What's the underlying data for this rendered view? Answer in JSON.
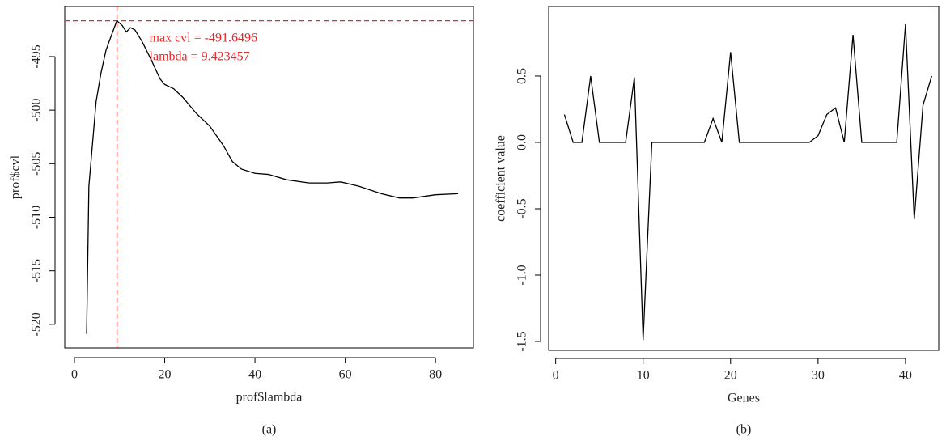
{
  "chart_data": [
    {
      "type": "line",
      "caption": "(a)",
      "x_label": "prof$lambda",
      "y_label": "prof$cvl",
      "x": [
        2.7,
        3.2,
        4.8,
        5.9,
        7,
        8.2,
        9.4,
        10.6,
        11.5,
        12.4,
        13.4,
        15,
        17,
        19,
        20,
        22,
        24,
        27,
        30,
        33,
        35,
        37,
        40,
        43,
        47,
        52,
        56,
        59,
        63,
        68,
        72,
        75,
        80,
        85
      ],
      "series": [
        {
          "color": "#000000",
          "values": [
            -520.9,
            -507.1,
            -499.2,
            -496.5,
            -494.4,
            -493.0,
            -491.65,
            -492.1,
            -492.7,
            -492.3,
            -492.5,
            -493.6,
            -495.3,
            -497.1,
            -497.6,
            -498.0,
            -498.8,
            -500.3,
            -501.5,
            -503.3,
            -504.8,
            -505.5,
            -505.9,
            -506.0,
            -506.5,
            -506.8,
            -506.8,
            -506.7,
            -507.1,
            -507.8,
            -508.2,
            -508.2,
            -507.9,
            -507.8
          ]
        }
      ],
      "xlim": [
        -2.15,
        88.4
      ],
      "ylim": [
        -522.2,
        -490.32
      ],
      "xticks": [
        0,
        20,
        40,
        60,
        80
      ],
      "yticks": [
        -520,
        -515,
        -510,
        -505,
        -500,
        -495
      ],
      "reference_lines": {
        "x": 9.423457,
        "y": -491.6496,
        "color": "#e8262a"
      },
      "annotations": [
        "max cvl = -491.6496",
        "lambda = 9.423457"
      ]
    },
    {
      "type": "line",
      "caption": "(b)",
      "x_label": "Genes",
      "y_label": "coefficient value",
      "x": [
        1,
        2,
        3,
        4,
        5,
        6,
        7,
        8,
        9,
        10,
        11,
        12,
        13,
        14,
        15,
        16,
        17,
        18,
        19,
        20,
        21,
        22,
        23,
        24,
        25,
        26,
        27,
        28,
        29,
        30,
        31,
        32,
        33,
        34,
        35,
        36,
        37,
        38,
        39,
        40,
        41,
        42,
        43
      ],
      "series": [
        {
          "color": "#000000",
          "values": [
            0.21,
            0,
            0,
            0.5,
            0,
            0,
            0,
            0,
            0.49,
            -1.49,
            0,
            0,
            0,
            0,
            0,
            0,
            0,
            0.18,
            0,
            0.68,
            0,
            0,
            0,
            0,
            0,
            0,
            0,
            0,
            0,
            0.05,
            0.21,
            0.26,
            0,
            0.81,
            0,
            0,
            0,
            0,
            0,
            0.89,
            -0.58,
            0.28,
            0.5
          ]
        }
      ],
      "xlim": [
        -0.8,
        43.8
      ],
      "ylim": [
        -1.567,
        1.024
      ],
      "xticks": [
        0,
        10,
        20,
        30,
        40
      ],
      "yticks": [
        -1.5,
        {
          "value": -1,
          "label": "-1.0"
        },
        -0.5,
        {
          "value": 0,
          "label": "0.0"
        },
        0.5
      ]
    }
  ]
}
